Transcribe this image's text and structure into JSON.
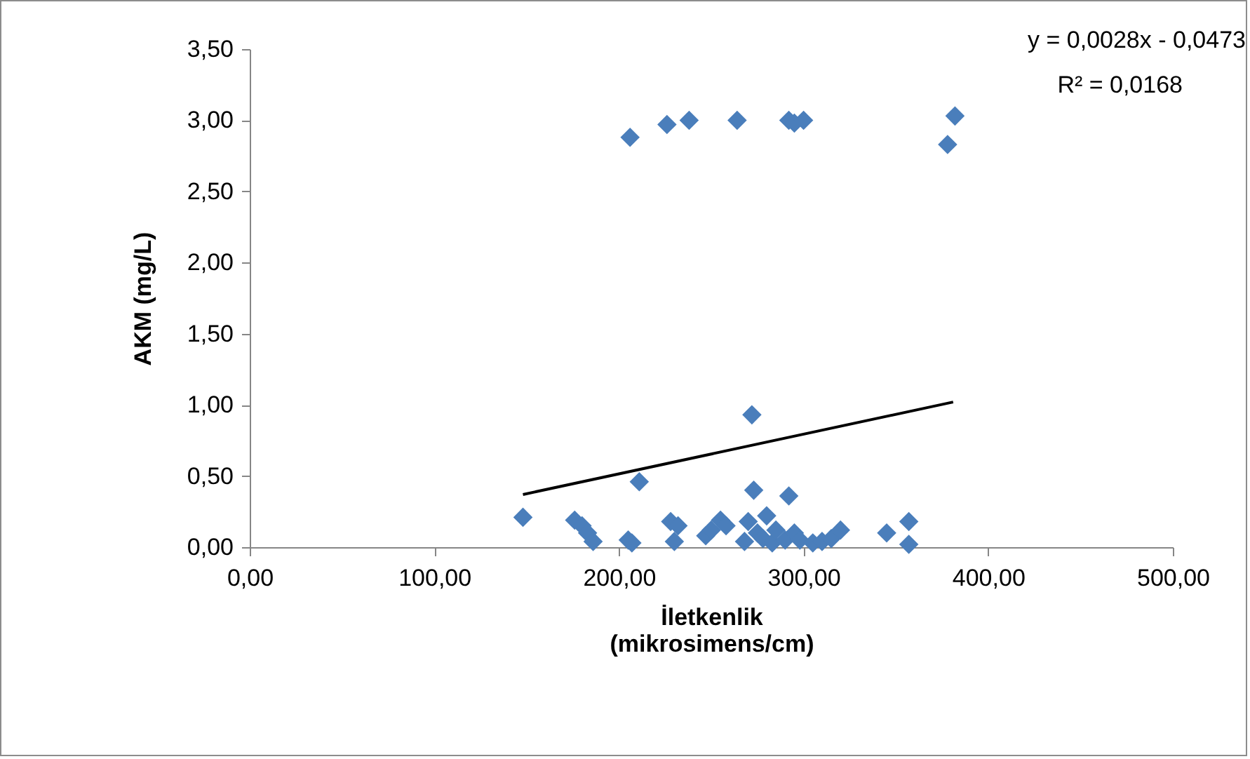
{
  "chart_data": {
    "type": "scatter",
    "xlabel": "İletkenlik\n(mikrosimens/cm)",
    "ylabel": "AKM (mg/L)",
    "annotations": [
      "y = 0,0028x - 0,0473",
      "R² = 0,0168"
    ],
    "marker": "diamond",
    "grid": false,
    "xlim": [
      0,
      500
    ],
    "ylim": [
      0,
      3.5
    ],
    "xticks": [
      {
        "value": 0,
        "label": "0,00"
      },
      {
        "value": 100,
        "label": "100,00"
      },
      {
        "value": 200,
        "label": "200,00"
      },
      {
        "value": 300,
        "label": "300,00"
      },
      {
        "value": 400,
        "label": "400,00"
      },
      {
        "value": 500,
        "label": "500,00"
      }
    ],
    "yticks": [
      {
        "value": 0,
        "label": "0,00"
      },
      {
        "value": 0.5,
        "label": "0,50"
      },
      {
        "value": 1,
        "label": "1,00"
      },
      {
        "value": 1.5,
        "label": "1,50"
      },
      {
        "value": 2,
        "label": "2,00"
      },
      {
        "value": 2.5,
        "label": "2,50"
      },
      {
        "value": 3,
        "label": "3,00"
      },
      {
        "value": 3.5,
        "label": "3,50"
      }
    ],
    "series": [
      {
        "color": "#4a7ebb",
        "x": [
          206,
          226,
          238,
          264,
          292,
          295,
          300,
          382,
          378,
          148,
          176,
          180,
          183,
          186,
          205,
          207,
          211,
          228,
          230,
          232,
          247,
          250,
          255,
          258,
          268,
          270,
          272,
          273,
          275,
          278,
          280,
          283,
          285,
          290,
          292,
          295,
          298,
          305,
          310,
          315,
          320,
          345,
          357,
          357
        ],
        "values": [
          2.88,
          2.97,
          3.0,
          3.0,
          3.0,
          2.98,
          3.0,
          3.03,
          2.83,
          0.21,
          0.19,
          0.15,
          0.1,
          0.04,
          0.05,
          0.03,
          0.46,
          0.18,
          0.04,
          0.15,
          0.08,
          0.12,
          0.19,
          0.15,
          0.04,
          0.18,
          0.93,
          0.4,
          0.1,
          0.06,
          0.22,
          0.03,
          0.12,
          0.05,
          0.36,
          0.1,
          0.05,
          0.03,
          0.04,
          0.06,
          0.12,
          0.1,
          0.18,
          0.02
        ]
      },
      {
        "type": "line",
        "color": "#000000",
        "marker": "none",
        "x": [
          148,
          381
        ],
        "values": [
          0.37,
          1.02
        ]
      }
    ]
  }
}
